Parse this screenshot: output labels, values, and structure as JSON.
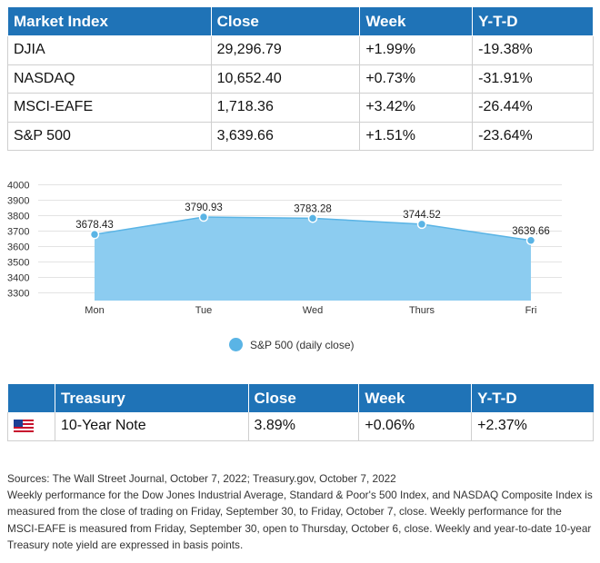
{
  "market_table": {
    "headers": [
      "Market Index",
      "Close",
      "Week",
      "Y-T-D"
    ],
    "rows": [
      [
        "DJIA",
        "29,296.79",
        "+1.99%",
        "-19.38%"
      ],
      [
        "NASDAQ",
        "10,652.40",
        "+0.73%",
        "-31.91%"
      ],
      [
        "MSCI-EAFE",
        "1,718.36",
        "+3.42%",
        "-26.44%"
      ],
      [
        "S&P 500",
        "3,639.66",
        "+1.51%",
        "-23.64%"
      ]
    ]
  },
  "chart_data": {
    "type": "area",
    "categories": [
      "Mon",
      "Tue",
      "Wed",
      "Thurs",
      "Fri"
    ],
    "series": [
      {
        "name": "S&P 500 (daily close)",
        "values": [
          3678.43,
          3790.93,
          3783.28,
          3744.52,
          3639.66
        ]
      }
    ],
    "data_labels": [
      "3678.43",
      "3790.93",
      "3783.28",
      "3744.52",
      "3639.66"
    ],
    "y_ticks": [
      "3300",
      "3400",
      "3500",
      "3600",
      "3700",
      "3800",
      "3900",
      "4000"
    ],
    "ylim": [
      3250,
      4000
    ],
    "grid": true,
    "legend_position": "bottom-center",
    "colors": {
      "fill": "#8cccf0",
      "stroke": "#5ab4e5",
      "marker": "#5ab4e5"
    }
  },
  "legend": {
    "label": "S&P 500 (daily close)"
  },
  "treasury_table": {
    "headers": [
      "",
      "Treasury",
      "Close",
      "Week",
      "Y-T-D"
    ],
    "row": {
      "flag_icon": "us-flag-icon",
      "name": "10-Year Note",
      "close": "3.89%",
      "week": "+0.06%",
      "ytd": "+2.37%"
    }
  },
  "notes": [
    "Sources: The Wall Street Journal, October 7, 2022; Treasury.gov, October 7, 2022",
    "Weekly performance for the Dow Jones Industrial Average, Standard & Poor's 500 Index, and NASDAQ Composite Index is measured from the close of trading on Friday, September 30, to Friday, October 7, close. Weekly performance for the MSCI-EAFE is measured from Friday, September 30, open to Thursday, October 6, close. Weekly and year-to-date 10-year Treasury note yield are expressed in basis points."
  ],
  "colors": {
    "header_bg": "#1f73b7",
    "header_text": "#ffffff",
    "border": "#cfcfcf"
  }
}
